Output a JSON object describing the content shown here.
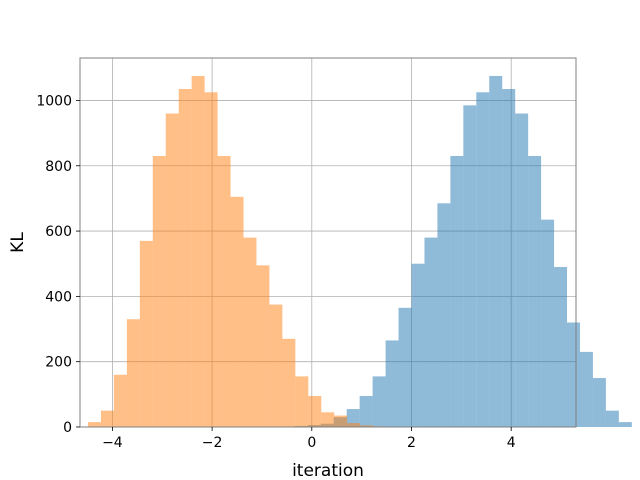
{
  "chart_data": {
    "type": "bar",
    "title": "",
    "xlabel": "iteration",
    "ylabel": "KL",
    "xlim": [
      -4.65,
      5.3
    ],
    "ylim": [
      0,
      1130
    ],
    "xticks": [
      -4,
      -2,
      0,
      2,
      4
    ],
    "yticks": [
      0,
      200,
      400,
      600,
      800,
      1000
    ],
    "xtick_labels": [
      "−4",
      "−2",
      "0",
      "2",
      "4"
    ],
    "ytick_labels": [
      "0",
      "200",
      "400",
      "600",
      "800",
      "1000"
    ],
    "grid": true,
    "bin_width": 0.26,
    "series": [
      {
        "color": "#1f77b4",
        "opacity": 0.5,
        "bin_start": -0.6,
        "values": [
          1,
          3,
          6,
          10,
          30,
          55,
          95,
          155,
          265,
          365,
          500,
          580,
          685,
          830,
          985,
          1025,
          1075,
          1035,
          960,
          830,
          635,
          490,
          320,
          230,
          150,
          50,
          15
        ]
      },
      {
        "color": "#ff7f0e",
        "opacity": 0.5,
        "bin_start": -4.49,
        "values": [
          15,
          50,
          160,
          330,
          570,
          830,
          960,
          1035,
          1075,
          1025,
          830,
          705,
          580,
          495,
          375,
          270,
          155,
          95,
          45,
          35,
          12,
          5,
          2,
          1
        ]
      }
    ]
  }
}
